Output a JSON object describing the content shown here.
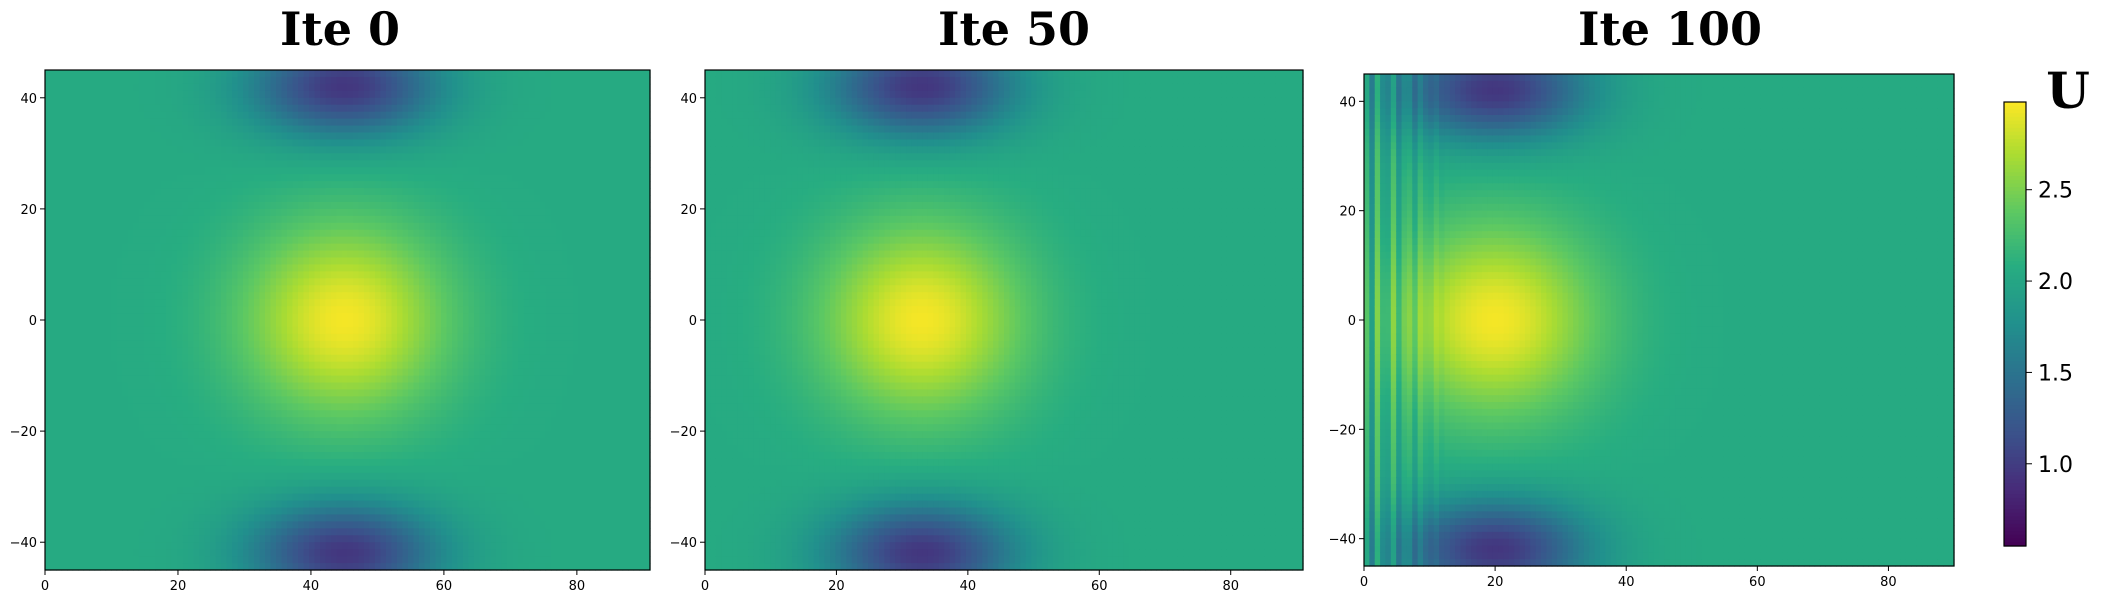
{
  "chart_data": [
    {
      "type": "heatmap",
      "title": "Ite 0",
      "xlim": [
        0,
        91
      ],
      "ylim": [
        -45,
        45
      ],
      "x_ticks": [
        0,
        20,
        40,
        60,
        80
      ],
      "y_ticks": [
        -40,
        -20,
        0,
        20,
        40
      ],
      "x_tick_labels": [
        "0",
        "20",
        "40",
        "60",
        "80"
      ],
      "y_tick_labels": [
        "−40",
        "−20",
        "0",
        "20",
        "40"
      ],
      "field": {
        "background": 2.05,
        "peak": {
          "x": 45,
          "y": 0,
          "value": 2.95
        },
        "troughs": [
          {
            "x": 45,
            "y": 42,
            "value": 0.95
          },
          {
            "x": 45,
            "y": -42,
            "value": 0.95
          }
        ],
        "oscillation": "none"
      }
    },
    {
      "type": "heatmap",
      "title": "Ite 50",
      "xlim": [
        0,
        91
      ],
      "ylim": [
        -45,
        45
      ],
      "x_ticks": [
        0,
        20,
        40,
        60,
        80
      ],
      "y_ticks": [
        -40,
        -20,
        0,
        20,
        40
      ],
      "x_tick_labels": [
        "0",
        "20",
        "40",
        "60",
        "80"
      ],
      "y_tick_labels": [
        "−40",
        "−20",
        "0",
        "20",
        "40"
      ],
      "field": {
        "background": 2.05,
        "peak": {
          "x": 33,
          "y": 0,
          "value": 2.95
        },
        "troughs": [
          {
            "x": 33,
            "y": 42,
            "value": 0.95
          },
          {
            "x": 33,
            "y": -42,
            "value": 0.95
          }
        ],
        "oscillation": "none"
      }
    },
    {
      "type": "heatmap",
      "title": "Ite 100",
      "xlim": [
        0,
        90
      ],
      "ylim": [
        -45,
        45
      ],
      "x_ticks": [
        0,
        20,
        40,
        60,
        80
      ],
      "y_ticks": [
        -40,
        -20,
        0,
        20,
        40
      ],
      "x_tick_labels": [
        "0",
        "20",
        "40",
        "60",
        "80"
      ],
      "y_tick_labels": [
        "−40",
        "−20",
        "0",
        "20",
        "40"
      ],
      "field": {
        "background": 2.05,
        "peak": {
          "x": 20,
          "y": 0,
          "value": 2.95
        },
        "troughs": [
          {
            "x": 20,
            "y": 42,
            "value": 0.95
          },
          {
            "x": 20,
            "y": -42,
            "value": 0.95
          }
        ],
        "oscillation": "vertical stripes for x < 12"
      }
    }
  ],
  "colorbar": {
    "title": "U",
    "range": [
      0.55,
      2.98
    ],
    "ticks": [
      1.0,
      1.5,
      2.0,
      2.5
    ],
    "tick_labels": [
      "1.0",
      "1.5",
      "2.0",
      "2.5"
    ],
    "colormap": "viridis"
  }
}
